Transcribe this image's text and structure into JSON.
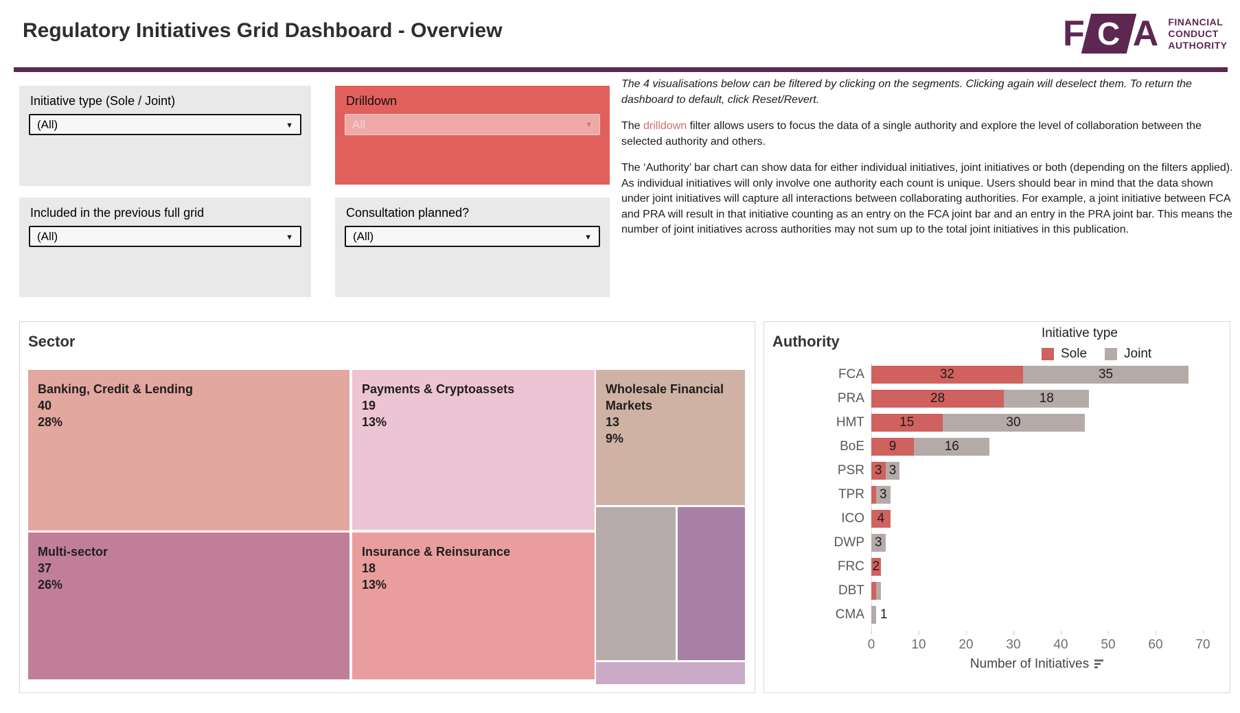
{
  "header": {
    "title": "Regulatory Initiatives Grid Dashboard - Overview",
    "logo": {
      "f": "F",
      "c": "C",
      "a": "A",
      "line1": "FINANCIAL",
      "line2": "CONDUCT",
      "line3": "AUTHORITY"
    },
    "brand_color": "#5e2751"
  },
  "icons": {
    "dropdown_arrow": "▼"
  },
  "filters": {
    "initiative_type": {
      "label": "Initiative type (Sole / Joint)",
      "value": "(All)"
    },
    "drilldown": {
      "label": "Drilldown",
      "value": "All",
      "box_color": "#e2605c"
    },
    "included": {
      "label": "Included in the previous full grid",
      "value": "(All)"
    },
    "consultation": {
      "label": "Consultation planned?",
      "value": "(All)"
    }
  },
  "info": {
    "p1": "The 4 visualisations below can be filtered by clicking on the segments. Clicking again will deselect them. To return the dashboard to default, click Reset/Revert.",
    "p2_pre": "The ",
    "p2_link": "drilldown",
    "p2_post": " filter allows users to focus the data of a single authority and explore the level of collaboration between the selected authority and others.",
    "p3": "The ‘Authority’ bar chart can show data for either individual initiatives, joint initiatives or both (depending on the filters applied). As individual initiatives will only involve one authority each count is unique. Users should bear in mind that the data shown under joint initiatives will capture all interactions between collaborating authorities. For example, a joint initiative between FCA and PRA will result in that initiative counting as an entry on the FCA joint bar and an entry in the PRA joint bar. This means the number of joint initiatives across authorities may not sum up to the total joint initiatives in this publication."
  },
  "chart_data": [
    {
      "type": "treemap",
      "title": "Sector",
      "segments": [
        {
          "label": "Banking, Credit & Lending",
          "value": "40",
          "pct": "28%",
          "color": "#e2a79e"
        },
        {
          "label": "Payments & Cryptoassets",
          "value": "19",
          "pct": "13%",
          "color": "#edc4d3"
        },
        {
          "label": "Wholesale Financial Markets",
          "value": "13",
          "pct": "9%",
          "color": "#cfb2a3"
        },
        {
          "label": "Multi-sector",
          "value": "37",
          "pct": "26%",
          "color": "#c17e98"
        },
        {
          "label": "Insurance & Reinsurance",
          "value": "18",
          "pct": "13%",
          "color": "#e99e9d"
        },
        {
          "label": "",
          "value": "",
          "pct": "",
          "color": "#b7acab"
        },
        {
          "label": "",
          "value": "",
          "pct": "",
          "color": "#a980a5"
        },
        {
          "label": "",
          "value": "",
          "pct": "",
          "color": "#c9abc8"
        }
      ]
    },
    {
      "type": "bar",
      "orientation": "horizontal",
      "title": "Authority",
      "legend_title": "Initiative type",
      "legend_position": "top-right",
      "categories": [
        "FCA",
        "PRA",
        "HMT",
        "BoE",
        "PSR",
        "TPR",
        "ICO",
        "DWP",
        "FRC",
        "DBT",
        "CMA"
      ],
      "series": [
        {
          "name": "Sole",
          "color": "#cf615f",
          "values": [
            32,
            28,
            15,
            9,
            3,
            1,
            4,
            0,
            2,
            1,
            0
          ],
          "labels": [
            "32",
            "28",
            "15",
            "9",
            "3",
            "",
            "4",
            "",
            "2",
            "",
            ""
          ]
        },
        {
          "name": "Joint",
          "color": "#b5aaa8",
          "values": [
            35,
            18,
            30,
            16,
            3,
            3,
            0,
            3,
            0,
            1,
            1
          ],
          "labels": [
            "35",
            "18",
            "30",
            "16",
            "3",
            "3",
            "",
            "3",
            "",
            "",
            "1"
          ]
        }
      ],
      "xlabel": "Number of Initiatives",
      "x_ticks": [
        0,
        10,
        20,
        30,
        40,
        50,
        60,
        70
      ],
      "xlim": [
        0,
        70
      ],
      "grid": false
    }
  ]
}
